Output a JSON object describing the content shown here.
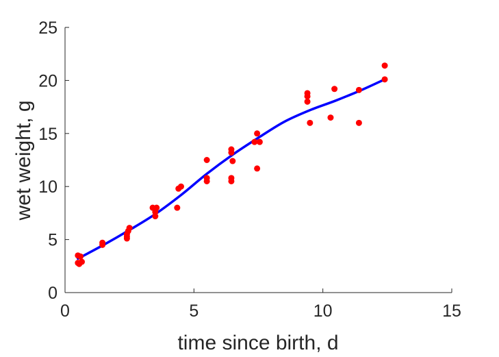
{
  "chart_data": {
    "type": "scatter",
    "title": "",
    "xlabel": "time since birth, d",
    "ylabel": "wet weight, g",
    "xlim": [
      0,
      15
    ],
    "ylim": [
      0,
      25
    ],
    "xticks": [
      "0",
      "5",
      "10",
      "15"
    ],
    "yticks": [
      "0",
      "5",
      "10",
      "15",
      "20",
      "25"
    ],
    "grid": false,
    "legend": "none",
    "series": [
      {
        "kind": "scatter",
        "color": "#ff0000",
        "points": [
          [
            0.5,
            3.5
          ],
          [
            0.5,
            2.8
          ],
          [
            0.55,
            2.7
          ],
          [
            0.6,
            3.4
          ],
          [
            0.65,
            2.9
          ],
          [
            1.45,
            4.5
          ],
          [
            1.45,
            4.7
          ],
          [
            2.4,
            5.1
          ],
          [
            2.4,
            5.3
          ],
          [
            2.4,
            5.5
          ],
          [
            2.45,
            5.8
          ],
          [
            2.5,
            6.1
          ],
          [
            3.4,
            8.0
          ],
          [
            3.5,
            7.2
          ],
          [
            3.5,
            7.6
          ],
          [
            3.55,
            8.0
          ],
          [
            4.35,
            8.0
          ],
          [
            4.4,
            9.8
          ],
          [
            4.5,
            10.0
          ],
          [
            5.5,
            12.5
          ],
          [
            5.5,
            10.5
          ],
          [
            5.5,
            10.8
          ],
          [
            6.45,
            13.5
          ],
          [
            6.45,
            13.2
          ],
          [
            6.5,
            12.4
          ],
          [
            6.45,
            10.8
          ],
          [
            6.45,
            10.5
          ],
          [
            7.35,
            14.2
          ],
          [
            7.45,
            15.0
          ],
          [
            7.55,
            14.2
          ],
          [
            7.45,
            11.7
          ],
          [
            9.4,
            18.8
          ],
          [
            9.4,
            18.5
          ],
          [
            9.4,
            18.0
          ],
          [
            9.5,
            16.0
          ],
          [
            10.3,
            16.5
          ],
          [
            10.45,
            19.2
          ],
          [
            11.4,
            19.1
          ],
          [
            11.4,
            16.0
          ],
          [
            12.4,
            21.4
          ],
          [
            12.4,
            20.1
          ]
        ]
      },
      {
        "kind": "line",
        "color": "#0000ff",
        "points": [
          [
            0.5,
            3.2
          ],
          [
            1.5,
            4.5
          ],
          [
            2.5,
            5.9
          ],
          [
            3.5,
            7.4
          ],
          [
            4.5,
            9.2
          ],
          [
            5.5,
            11.2
          ],
          [
            6.5,
            13.0
          ],
          [
            7.5,
            14.6
          ],
          [
            8.5,
            16.1
          ],
          [
            9.5,
            17.2
          ],
          [
            10.5,
            18.1
          ],
          [
            11.5,
            19.1
          ],
          [
            12.4,
            20.1
          ]
        ]
      }
    ]
  }
}
